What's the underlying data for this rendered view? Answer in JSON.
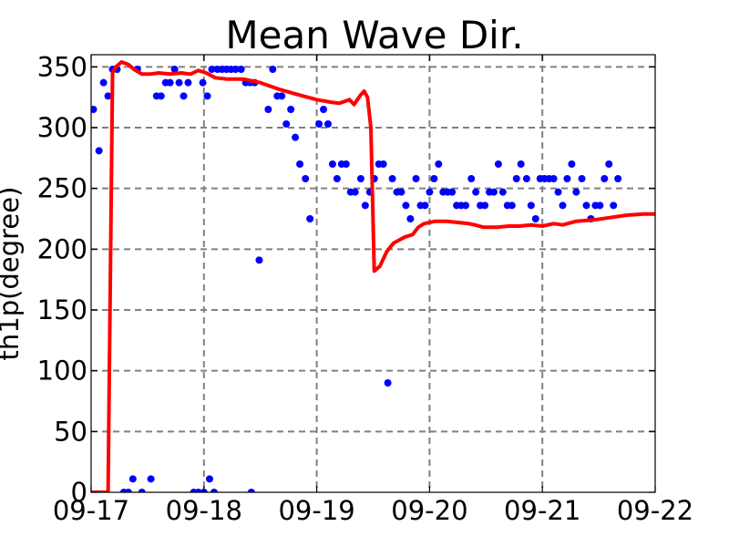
{
  "chart_data": {
    "type": "line",
    "title": "Mean Wave Dir.",
    "xlabel": "",
    "ylabel": "th1p(degree)",
    "x_tick_labels": [
      "09-17",
      "09-18",
      "09-19",
      "09-20",
      "09-21",
      "09-22"
    ],
    "y_ticks": [
      0,
      50,
      100,
      150,
      200,
      250,
      300,
      350
    ],
    "xlim": [
      "09-17",
      "09-22"
    ],
    "ylim": [
      0,
      360
    ],
    "grid": true,
    "series": [
      {
        "mark": "scatter",
        "color": "#0000ff",
        "points": [
          [
            0.02,
            315
          ],
          [
            0.07,
            281
          ],
          [
            0.11,
            337
          ],
          [
            0.15,
            326
          ],
          [
            0.19,
            348
          ],
          [
            0.23,
            348
          ],
          [
            0.29,
            0
          ],
          [
            0.33,
            0
          ],
          [
            0.37,
            11
          ],
          [
            0.45,
            0
          ],
          [
            0.53,
            11
          ],
          [
            0.41,
            348
          ],
          [
            0.58,
            326
          ],
          [
            0.62,
            326
          ],
          [
            0.66,
            337
          ],
          [
            0.7,
            337
          ],
          [
            0.74,
            348
          ],
          [
            0.78,
            337
          ],
          [
            0.82,
            326
          ],
          [
            0.86,
            337
          ],
          [
            0.91,
            0
          ],
          [
            0.95,
            0
          ],
          [
            1.0,
            0
          ],
          [
            1.05,
            11
          ],
          [
            1.09,
            0
          ],
          [
            0.99,
            337
          ],
          [
            1.03,
            326
          ],
          [
            1.07,
            348
          ],
          [
            1.12,
            348
          ],
          [
            1.16,
            348
          ],
          [
            1.2,
            348
          ],
          [
            1.24,
            348
          ],
          [
            1.28,
            348
          ],
          [
            1.33,
            348
          ],
          [
            1.37,
            337
          ],
          [
            1.41,
            337
          ],
          [
            1.42,
            0
          ],
          [
            1.45,
            337
          ],
          [
            1.49,
            191
          ],
          [
            1.57,
            315
          ],
          [
            1.61,
            348
          ],
          [
            1.65,
            326
          ],
          [
            1.69,
            326
          ],
          [
            1.73,
            303
          ],
          [
            1.77,
            315
          ],
          [
            1.81,
            292
          ],
          [
            1.85,
            270
          ],
          [
            1.9,
            258
          ],
          [
            1.94,
            225
          ],
          [
            2.02,
            303
          ],
          [
            2.06,
            315
          ],
          [
            2.1,
            303
          ],
          [
            2.14,
            270
          ],
          [
            2.18,
            258
          ],
          [
            2.22,
            270
          ],
          [
            2.26,
            270
          ],
          [
            2.3,
            247
          ],
          [
            2.34,
            247
          ],
          [
            2.39,
            258
          ],
          [
            2.43,
            236
          ],
          [
            2.47,
            247
          ],
          [
            2.51,
            258
          ],
          [
            2.55,
            270
          ],
          [
            2.59,
            270
          ],
          [
            2.63,
            90
          ],
          [
            2.67,
            258
          ],
          [
            2.71,
            247
          ],
          [
            2.75,
            247
          ],
          [
            2.79,
            236
          ],
          [
            2.83,
            225
          ],
          [
            2.88,
            258
          ],
          [
            2.92,
            236
          ],
          [
            2.96,
            236
          ],
          [
            3.0,
            247
          ],
          [
            3.04,
            258
          ],
          [
            3.08,
            270
          ],
          [
            3.12,
            247
          ],
          [
            3.16,
            247
          ],
          [
            3.2,
            247
          ],
          [
            3.24,
            236
          ],
          [
            3.28,
            236
          ],
          [
            3.32,
            236
          ],
          [
            3.37,
            258
          ],
          [
            3.41,
            247
          ],
          [
            3.45,
            236
          ],
          [
            3.49,
            236
          ],
          [
            3.53,
            247
          ],
          [
            3.57,
            247
          ],
          [
            3.61,
            270
          ],
          [
            3.65,
            247
          ],
          [
            3.69,
            236
          ],
          [
            3.73,
            236
          ],
          [
            3.77,
            258
          ],
          [
            3.81,
            270
          ],
          [
            3.86,
            258
          ],
          [
            3.9,
            236
          ],
          [
            3.94,
            225
          ],
          [
            3.98,
            258
          ],
          [
            4.02,
            258
          ],
          [
            4.06,
            258
          ],
          [
            4.1,
            258
          ],
          [
            4.14,
            247
          ],
          [
            4.18,
            236
          ],
          [
            4.22,
            258
          ],
          [
            4.26,
            270
          ],
          [
            4.3,
            247
          ],
          [
            4.35,
            258
          ],
          [
            4.39,
            236
          ],
          [
            4.43,
            225
          ],
          [
            4.47,
            236
          ],
          [
            4.51,
            236
          ],
          [
            4.55,
            258
          ],
          [
            4.59,
            270
          ],
          [
            4.63,
            236
          ],
          [
            4.67,
            258
          ]
        ]
      },
      {
        "mark": "line",
        "color": "#ff0000",
        "points": [
          [
            0.0,
            0
          ],
          [
            0.15,
            0
          ],
          [
            0.19,
            345
          ],
          [
            0.22,
            350
          ],
          [
            0.27,
            354
          ],
          [
            0.33,
            352
          ],
          [
            0.38,
            348
          ],
          [
            0.45,
            344
          ],
          [
            0.52,
            344
          ],
          [
            0.6,
            345
          ],
          [
            0.7,
            344
          ],
          [
            0.8,
            345
          ],
          [
            0.88,
            344
          ],
          [
            0.95,
            347
          ],
          [
            1.02,
            345
          ],
          [
            1.1,
            341
          ],
          [
            1.2,
            340
          ],
          [
            1.35,
            340
          ],
          [
            1.5,
            337
          ],
          [
            1.65,
            332
          ],
          [
            1.8,
            328
          ],
          [
            1.92,
            325
          ],
          [
            2.0,
            323
          ],
          [
            2.12,
            321
          ],
          [
            2.2,
            320
          ],
          [
            2.29,
            323
          ],
          [
            2.33,
            319
          ],
          [
            2.39,
            327
          ],
          [
            2.42,
            330
          ],
          [
            2.45,
            325
          ],
          [
            2.48,
            300
          ],
          [
            2.5,
            220
          ],
          [
            2.51,
            182
          ],
          [
            2.56,
            186
          ],
          [
            2.62,
            198
          ],
          [
            2.68,
            205
          ],
          [
            2.78,
            210
          ],
          [
            2.85,
            212
          ],
          [
            2.9,
            218
          ],
          [
            2.95,
            221
          ],
          [
            3.05,
            223
          ],
          [
            3.15,
            223
          ],
          [
            3.25,
            222
          ],
          [
            3.35,
            221
          ],
          [
            3.4,
            220
          ],
          [
            3.48,
            218
          ],
          [
            3.6,
            218
          ],
          [
            3.7,
            219
          ],
          [
            3.8,
            219
          ],
          [
            3.9,
            220
          ],
          [
            4.0,
            219
          ],
          [
            4.1,
            221
          ],
          [
            4.18,
            220
          ],
          [
            4.3,
            223
          ],
          [
            4.45,
            224
          ],
          [
            4.6,
            226
          ],
          [
            4.75,
            228
          ],
          [
            4.9,
            229
          ],
          [
            5.0,
            229
          ]
        ]
      }
    ]
  }
}
